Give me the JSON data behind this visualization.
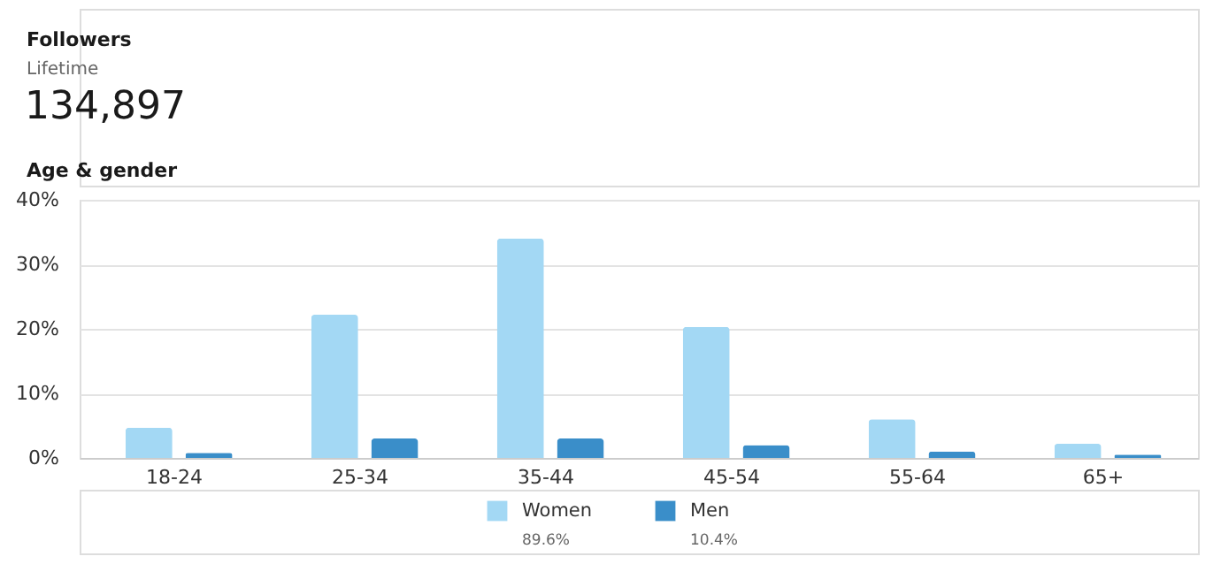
{
  "chart_data": {
    "type": "bar",
    "title": "Followers",
    "subtitle": "Lifetime",
    "annotations": [
      "134,897",
      "Age & gender",
      "89.6%",
      "10.4%"
    ],
    "categories": [
      "18-24",
      "25-34",
      "35-44",
      "45-54",
      "55-64",
      "65+"
    ],
    "series": [
      {
        "name": "Women",
        "color": "#a3d8f4",
        "values": [
          4.7,
          22.2,
          34.0,
          20.3,
          6.0,
          2.2
        ]
      },
      {
        "name": "Men",
        "color": "#3a8ec9",
        "values": [
          0.8,
          3.0,
          3.0,
          2.0,
          1.0,
          0.5
        ]
      }
    ],
    "ylim": [
      0,
      40
    ],
    "yticks": [
      {
        "value": 0,
        "label": "0%"
      },
      {
        "value": 10,
        "label": "10%"
      },
      {
        "value": 20,
        "label": "20%"
      },
      {
        "value": 30,
        "label": "30%"
      },
      {
        "value": 40,
        "label": "40%"
      }
    ],
    "grid": "y",
    "legend": "bottom"
  }
}
